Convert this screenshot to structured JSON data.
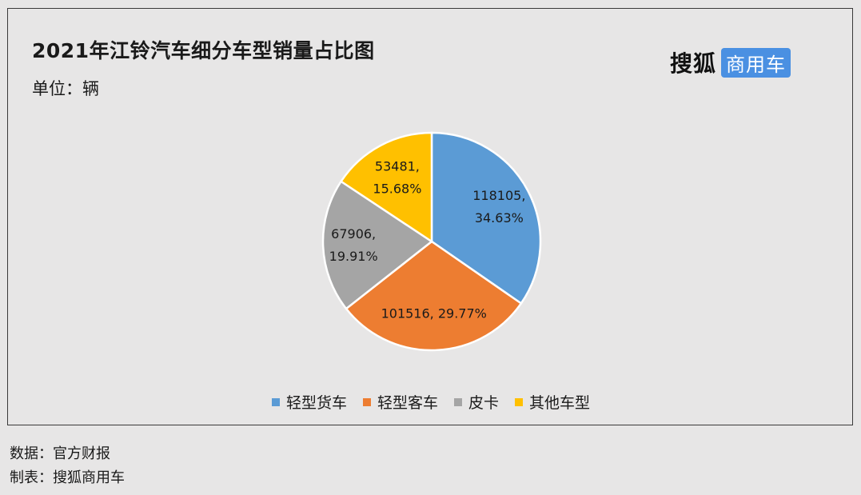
{
  "title": "2021年江铃汽车细分车型销量占比图",
  "unit": "单位：辆",
  "logo": {
    "main": "搜狐",
    "badge": "商用车"
  },
  "source": "数据：官方财报",
  "maker": "制表：搜狐商用车",
  "chart_data": {
    "type": "pie",
    "categories": [
      "轻型货车",
      "轻型客车",
      "皮卡",
      "其他车型"
    ],
    "values": [
      118105,
      101516,
      67906,
      53481
    ],
    "percentages": [
      "34.63%",
      "29.77%",
      "19.91%",
      "15.68%"
    ],
    "colors": [
      "#5b9bd5",
      "#ed7d31",
      "#a5a5a5",
      "#ffc000"
    ],
    "data_labels": [
      [
        "118105,",
        "34.63%"
      ],
      [
        "101516, 29.77%"
      ],
      [
        "67906,",
        "19.91%"
      ],
      [
        "53481,",
        "15.68%"
      ]
    ],
    "legend_position": "bottom"
  }
}
